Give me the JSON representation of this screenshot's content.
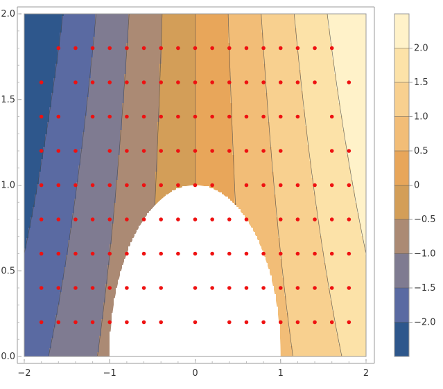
{
  "chart_data": {
    "type": "contour",
    "title": "",
    "xlabel": "",
    "ylabel": "",
    "xlim": [
      -2,
      2
    ],
    "ylim": [
      0,
      2
    ],
    "x_ticks": [
      "−2",
      "−1",
      "0",
      "1",
      "2"
    ],
    "y_ticks": [
      "0.0",
      "0.5",
      "1.0",
      "1.5",
      "2.0"
    ],
    "contour_levels": [
      -2.0,
      -1.5,
      -1.0,
      -0.5,
      0,
      0.5,
      1.0,
      1.5,
      2.0
    ],
    "legend_labels": [
      "2.0",
      "1.5",
      "1.0",
      "0.5",
      "0",
      "−0.5",
      "−1.0",
      "−1.5",
      "−2.0"
    ],
    "legend_placement": "right",
    "band_colors": [
      "#2e578c",
      "#5a6aa2",
      "#7f7b91",
      "#ab8a74",
      "#d39e58",
      "#e8a65a",
      "#f2bd77",
      "#f8d08f",
      "#fce2a8",
      "#fff2c9"
    ],
    "excluded_region": "white region bounded by x^2 + y^2 < 1 (approximately), undefined values",
    "markers": {
      "color": "#ee1111",
      "points": [
        [
          -1.6,
          1.8
        ],
        [
          -1.4,
          1.8
        ],
        [
          -1.2,
          1.8
        ],
        [
          -1.0,
          1.8
        ],
        [
          -0.8,
          1.8
        ],
        [
          -0.6,
          1.8
        ],
        [
          -0.4,
          1.8
        ],
        [
          -0.2,
          1.8
        ],
        [
          0.0,
          1.8
        ],
        [
          0.2,
          1.8
        ],
        [
          0.4,
          1.8
        ],
        [
          0.6,
          1.8
        ],
        [
          0.8,
          1.8
        ],
        [
          1.0,
          1.8
        ],
        [
          1.2,
          1.8
        ],
        [
          1.4,
          1.8
        ],
        [
          1.6,
          1.8
        ],
        [
          -1.8,
          1.6
        ],
        [
          -1.4,
          1.6
        ],
        [
          -1.2,
          1.6
        ],
        [
          -1.0,
          1.6
        ],
        [
          -0.8,
          1.6
        ],
        [
          -0.6,
          1.6
        ],
        [
          -0.4,
          1.6
        ],
        [
          -0.2,
          1.6
        ],
        [
          0.0,
          1.6
        ],
        [
          0.2,
          1.6
        ],
        [
          0.4,
          1.6
        ],
        [
          0.6,
          1.6
        ],
        [
          0.8,
          1.6
        ],
        [
          1.0,
          1.6
        ],
        [
          1.2,
          1.6
        ],
        [
          1.4,
          1.6
        ],
        [
          1.8,
          1.6
        ],
        [
          -1.8,
          1.4
        ],
        [
          -1.6,
          1.4
        ],
        [
          -1.2,
          1.4
        ],
        [
          -1.0,
          1.4
        ],
        [
          -0.8,
          1.4
        ],
        [
          -0.6,
          1.4
        ],
        [
          -0.4,
          1.4
        ],
        [
          -0.2,
          1.4
        ],
        [
          0.0,
          1.4
        ],
        [
          0.2,
          1.4
        ],
        [
          0.4,
          1.4
        ],
        [
          0.6,
          1.4
        ],
        [
          0.8,
          1.4
        ],
        [
          1.0,
          1.4
        ],
        [
          1.2,
          1.4
        ],
        [
          1.6,
          1.4
        ],
        [
          -1.8,
          1.2
        ],
        [
          -1.6,
          1.2
        ],
        [
          -1.4,
          1.2
        ],
        [
          -1.0,
          1.2
        ],
        [
          -0.8,
          1.2
        ],
        [
          -0.6,
          1.2
        ],
        [
          -0.4,
          1.2
        ],
        [
          -0.2,
          1.2
        ],
        [
          0.0,
          1.2
        ],
        [
          0.2,
          1.2
        ],
        [
          0.4,
          1.2
        ],
        [
          0.6,
          1.2
        ],
        [
          0.8,
          1.2
        ],
        [
          1.0,
          1.2
        ],
        [
          1.6,
          1.2
        ],
        [
          1.8,
          1.2
        ],
        [
          -1.8,
          1.0
        ],
        [
          -1.6,
          1.0
        ],
        [
          -1.4,
          1.0
        ],
        [
          -1.2,
          1.0
        ],
        [
          -1.0,
          1.0
        ],
        [
          -0.8,
          1.0
        ],
        [
          -0.6,
          1.0
        ],
        [
          -0.4,
          1.0
        ],
        [
          -0.2,
          1.0
        ],
        [
          0.0,
          1.0
        ],
        [
          0.2,
          1.0
        ],
        [
          0.6,
          1.0
        ],
        [
          0.8,
          1.0
        ],
        [
          1.0,
          1.0
        ],
        [
          1.2,
          1.0
        ],
        [
          1.4,
          1.0
        ],
        [
          1.6,
          1.0
        ],
        [
          1.8,
          1.0
        ],
        [
          -1.8,
          0.8
        ],
        [
          -1.6,
          0.8
        ],
        [
          -1.4,
          0.8
        ],
        [
          -1.2,
          0.8
        ],
        [
          -1.0,
          0.8
        ],
        [
          -0.8,
          0.8
        ],
        [
          -0.6,
          0.8
        ],
        [
          -0.4,
          0.8
        ],
        [
          -0.2,
          0.8
        ],
        [
          0.0,
          0.8
        ],
        [
          0.2,
          0.8
        ],
        [
          0.4,
          0.8
        ],
        [
          0.6,
          0.8
        ],
        [
          1.0,
          0.8
        ],
        [
          1.2,
          0.8
        ],
        [
          1.4,
          0.8
        ],
        [
          1.6,
          0.8
        ],
        [
          1.8,
          0.8
        ],
        [
          -1.8,
          0.6
        ],
        [
          -1.6,
          0.6
        ],
        [
          -1.4,
          0.6
        ],
        [
          -1.2,
          0.6
        ],
        [
          -1.0,
          0.6
        ],
        [
          -0.8,
          0.6
        ],
        [
          -0.6,
          0.6
        ],
        [
          -0.4,
          0.6
        ],
        [
          -0.2,
          0.6
        ],
        [
          0.0,
          0.6
        ],
        [
          0.2,
          0.6
        ],
        [
          0.4,
          0.6
        ],
        [
          0.6,
          0.6
        ],
        [
          0.8,
          0.6
        ],
        [
          1.0,
          0.6
        ],
        [
          1.2,
          0.6
        ],
        [
          1.4,
          0.6
        ],
        [
          1.6,
          0.6
        ],
        [
          1.8,
          0.6
        ],
        [
          -1.8,
          0.4
        ],
        [
          -1.6,
          0.4
        ],
        [
          -1.4,
          0.4
        ],
        [
          -1.2,
          0.4
        ],
        [
          -1.0,
          0.4
        ],
        [
          -0.8,
          0.4
        ],
        [
          -0.6,
          0.4
        ],
        [
          -0.4,
          0.4
        ],
        [
          0.0,
          0.4
        ],
        [
          0.2,
          0.4
        ],
        [
          0.4,
          0.4
        ],
        [
          0.6,
          0.4
        ],
        [
          0.8,
          0.4
        ],
        [
          1.0,
          0.4
        ],
        [
          1.2,
          0.4
        ],
        [
          1.4,
          0.4
        ],
        [
          1.6,
          0.4
        ],
        [
          1.8,
          0.4
        ],
        [
          -1.8,
          0.2
        ],
        [
          -1.6,
          0.2
        ],
        [
          -1.4,
          0.2
        ],
        [
          -1.2,
          0.2
        ],
        [
          -1.0,
          0.2
        ],
        [
          -0.8,
          0.2
        ],
        [
          -0.6,
          0.2
        ],
        [
          -0.4,
          0.2
        ],
        [
          0.0,
          0.2
        ],
        [
          0.4,
          0.2
        ],
        [
          0.6,
          0.2
        ],
        [
          0.8,
          0.2
        ],
        [
          1.0,
          0.2
        ],
        [
          1.2,
          0.2
        ],
        [
          1.4,
          0.2
        ],
        [
          1.6,
          0.2
        ],
        [
          1.8,
          0.2
        ]
      ]
    }
  }
}
